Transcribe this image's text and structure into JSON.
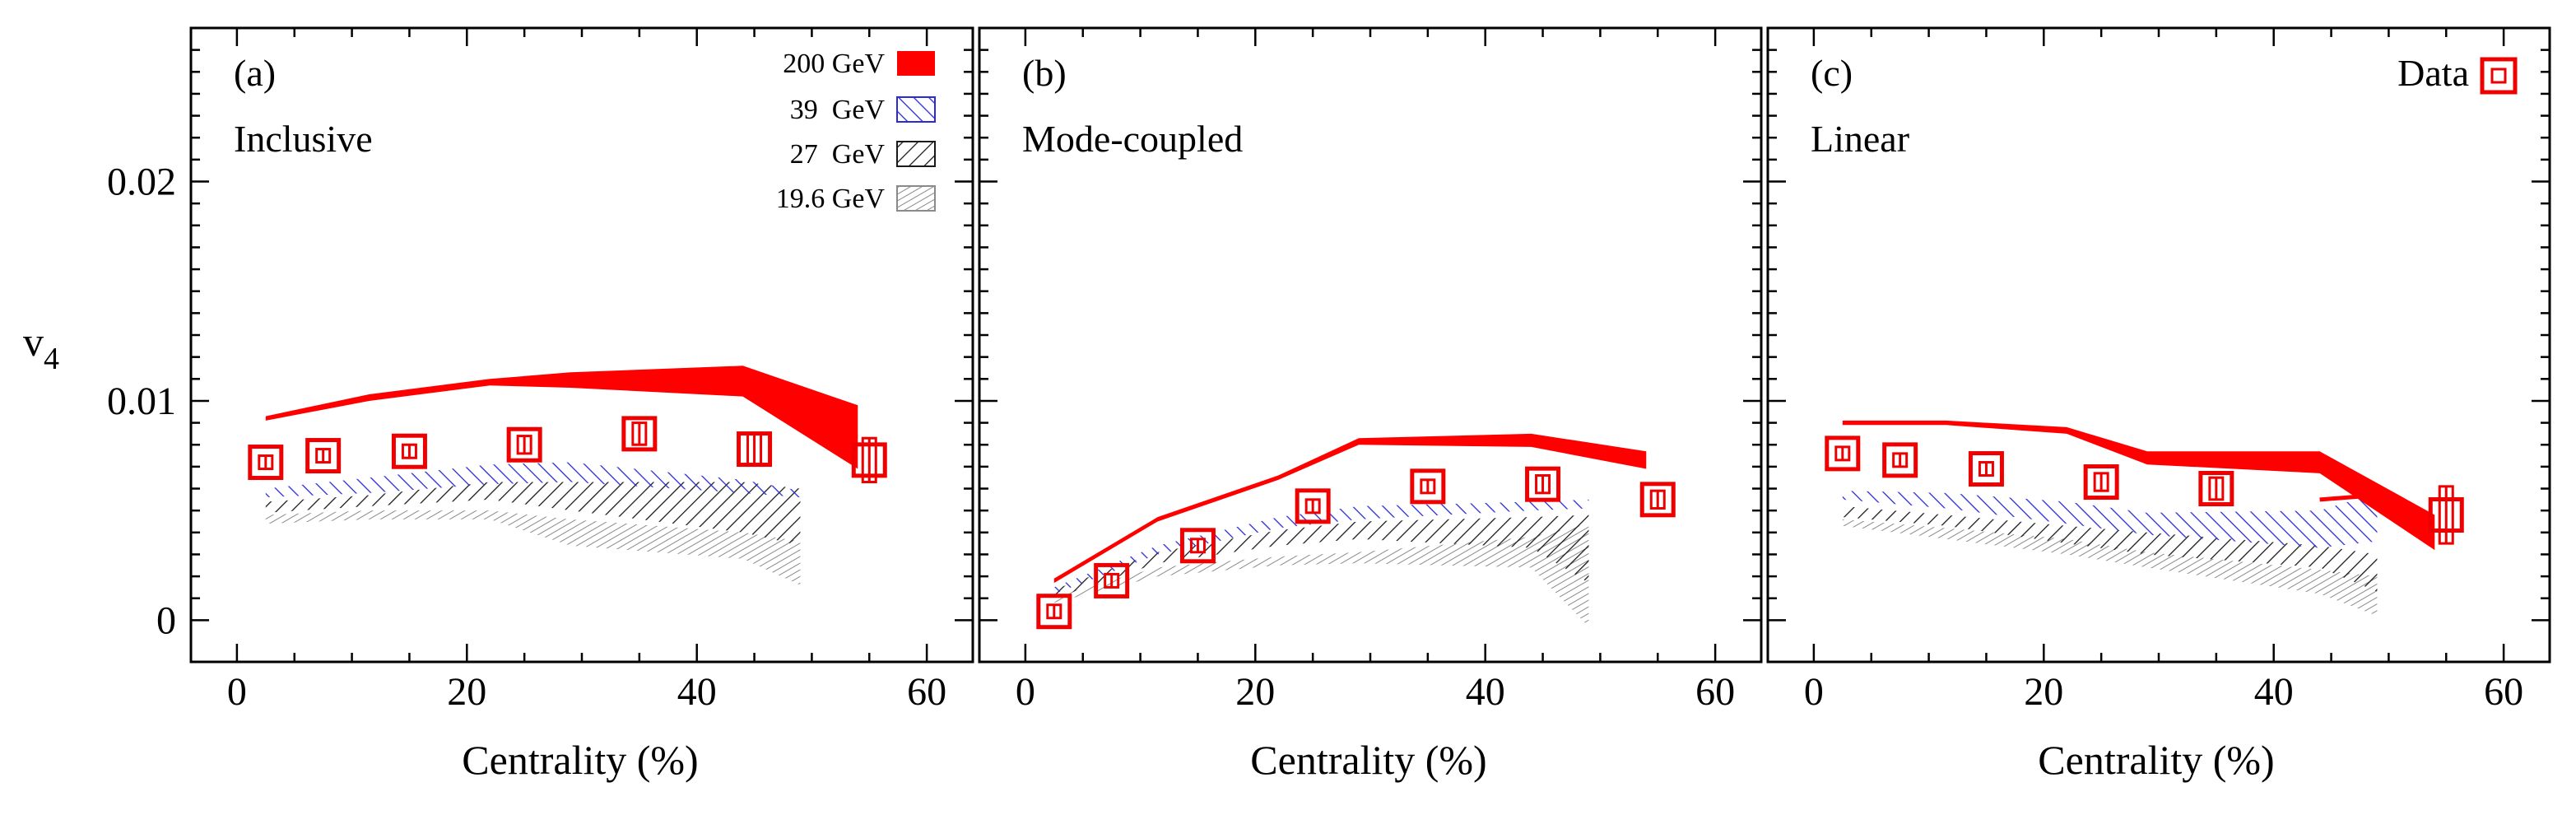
{
  "figure": {
    "y_axis_label": "v",
    "y_axis_subscript": "4",
    "x_axis_label": "Centrality (%)",
    "data_marker_label": "Data"
  },
  "colors": {
    "e200": "#ff0000",
    "e39": "#2a2ad8",
    "e27": "#1a1a1a",
    "e19": "#8a8a8a",
    "data": "#ee0000"
  },
  "legend": [
    {
      "label": "200 GeV",
      "key": "e200"
    },
    {
      "label": "39  GeV",
      "key": "e39"
    },
    {
      "label": "27  GeV",
      "key": "e27"
    },
    {
      "label": "19.6 GeV",
      "key": "e19"
    }
  ],
  "chart_data": [
    {
      "type": "area",
      "panel": "(a)",
      "title": "Inclusive",
      "xlabel": "Centrality (%)",
      "ylabel": "v4",
      "xlim": [
        -4,
        64
      ],
      "ylim": [
        -0.0019,
        0.027
      ],
      "xticks": [
        0,
        20,
        40,
        60
      ],
      "yticks": [
        0,
        0.01,
        0.02
      ],
      "ytick_labels": [
        "0",
        "0.01",
        "0.02"
      ],
      "bands": [
        {
          "name": "200 GeV",
          "key": "e200",
          "x": [
            2.5,
            11.5,
            22,
            29,
            44,
            54
          ],
          "lower": [
            0.0091,
            0.01,
            0.0107,
            0.0106,
            0.0102,
            0.0069
          ],
          "upper": [
            0.0093,
            0.0103,
            0.011,
            0.0113,
            0.0116,
            0.0098
          ]
        },
        {
          "name": "39 GeV",
          "key": "e39",
          "x": [
            2.5,
            11.5,
            22,
            29,
            44,
            49
          ],
          "lower": [
            0.0056,
            0.0058,
            0.0062,
            0.0063,
            0.0058,
            0.0056
          ],
          "upper": [
            0.006,
            0.0065,
            0.0071,
            0.0072,
            0.0064,
            0.0059
          ]
        },
        {
          "name": "27 GeV",
          "key": "e27",
          "x": [
            2.5,
            11.5,
            22,
            29,
            44,
            49
          ],
          "lower": [
            0.0049,
            0.0052,
            0.0055,
            0.005,
            0.004,
            0.0034
          ],
          "upper": [
            0.0054,
            0.0057,
            0.0063,
            0.0063,
            0.0063,
            0.006
          ]
        },
        {
          "name": "19.6 GeV",
          "key": "e19",
          "x": [
            2.5,
            11.5,
            22,
            29,
            44,
            49
          ],
          "lower": [
            0.0044,
            0.0046,
            0.0046,
            0.0034,
            0.0028,
            0.0016
          ],
          "upper": [
            0.0048,
            0.005,
            0.005,
            0.0046,
            0.004,
            0.0036
          ]
        }
      ],
      "data": {
        "x": [
          2.5,
          7.5,
          15,
          25,
          35,
          45,
          55
        ],
        "y": [
          0.0072,
          0.0075,
          0.0077,
          0.008,
          0.0085,
          0.0078,
          0.0073
        ],
        "err": [
          0.0003,
          0.0003,
          0.0003,
          0.0004,
          0.0005,
          0.0007,
          0.001
        ]
      }
    },
    {
      "type": "area",
      "panel": "(b)",
      "title": "Mode-coupled",
      "xlabel": "Centrality (%)",
      "ylabel": "v4",
      "xlim": [
        -4,
        64
      ],
      "ylim": [
        -0.0019,
        0.027
      ],
      "xticks": [
        0,
        20,
        40,
        60
      ],
      "yticks": [
        0,
        0.01,
        0.02
      ],
      "ytick_labels": [
        "0",
        "0.01",
        "0.02"
      ],
      "bands": [
        {
          "name": "200 GeV",
          "key": "e200",
          "x": [
            2.5,
            11.5,
            22,
            29,
            44,
            54
          ],
          "lower": [
            0.0017,
            0.0045,
            0.0064,
            0.008,
            0.0079,
            0.0069
          ],
          "upper": [
            0.0019,
            0.0047,
            0.0066,
            0.0083,
            0.0085,
            0.0077
          ]
        },
        {
          "name": "39 GeV",
          "key": "e39",
          "x": [
            2.5,
            11.5,
            22,
            29,
            44,
            49
          ],
          "lower": [
            0.0012,
            0.003,
            0.0042,
            0.0046,
            0.005,
            0.0051
          ],
          "upper": [
            0.0015,
            0.0034,
            0.0047,
            0.0052,
            0.0054,
            0.0055
          ]
        },
        {
          "name": "27 GeV",
          "key": "e27",
          "x": [
            2.5,
            11.5,
            22,
            29,
            44,
            49
          ],
          "lower": [
            0.001,
            0.0026,
            0.0034,
            0.0037,
            0.0033,
            0.0017
          ],
          "upper": [
            0.0014,
            0.0031,
            0.0041,
            0.0045,
            0.0047,
            0.0048
          ]
        },
        {
          "name": "19.6 GeV",
          "key": "e19",
          "x": [
            2.5,
            11.5,
            22,
            29,
            44,
            49
          ],
          "lower": [
            0.0008,
            0.002,
            0.0025,
            0.0026,
            0.0024,
            -0.0003
          ],
          "upper": [
            0.0011,
            0.0024,
            0.0029,
            0.0031,
            0.0038,
            0.0044
          ]
        }
      ],
      "data": {
        "x": [
          2.5,
          7.5,
          15,
          25,
          35,
          45,
          55
        ],
        "y": [
          0.0004,
          0.0018,
          0.0034,
          0.0052,
          0.0061,
          0.0062,
          0.0055
        ],
        "err": [
          0.0003,
          0.0003,
          0.0003,
          0.0003,
          0.0003,
          0.0004,
          0.0004
        ]
      }
    },
    {
      "type": "area",
      "panel": "(c)",
      "title": "Linear",
      "xlabel": "Centrality (%)",
      "ylabel": "v4",
      "xlim": [
        -4,
        64
      ],
      "ylim": [
        -0.0019,
        0.027
      ],
      "xticks": [
        0,
        20,
        40,
        60
      ],
      "yticks": [
        0,
        0.01,
        0.02
      ],
      "ytick_labels": [
        "0",
        "0.01",
        "0.02"
      ],
      "bands": [
        {
          "name": "200 GeV",
          "key": "e200",
          "x": [
            2.5,
            11.5,
            22,
            29,
            44,
            54
          ],
          "lower": [
            0.0089,
            0.0089,
            0.0085,
            0.0071,
            0.0067,
            0.0032
          ],
          "upper": [
            0.0091,
            0.0091,
            0.0088,
            0.0077,
            0.0077,
            0.0048
          ]
        },
        {
          "name": "39 GeV",
          "key": "e39",
          "x": [
            2.5,
            11.5,
            22,
            29,
            44,
            49
          ],
          "lower": [
            0.0055,
            0.0051,
            0.0044,
            0.0039,
            0.0033,
            0.0036
          ],
          "upper": [
            0.0059,
            0.0058,
            0.0054,
            0.0049,
            0.005,
            0.0058
          ]
        },
        {
          "name": "27 GeV",
          "key": "e27",
          "x": [
            2.5,
            11.5,
            22,
            29,
            44,
            49
          ],
          "lower": [
            0.0047,
            0.0043,
            0.0035,
            0.003,
            0.0024,
            0.0013
          ],
          "upper": [
            0.0052,
            0.0048,
            0.0043,
            0.004,
            0.0034,
            0.003
          ]
        },
        {
          "name": "19.6 GeV",
          "key": "e19",
          "x": [
            2.5,
            11.5,
            22,
            29,
            44,
            49
          ],
          "lower": [
            0.0043,
            0.0037,
            0.003,
            0.0024,
            0.0012,
            0.0002
          ],
          "upper": [
            0.0046,
            0.0042,
            0.0037,
            0.0031,
            0.0023,
            0.002
          ]
        }
      ],
      "extra_segment": {
        "key": "e200",
        "x": [
          44,
          49
        ],
        "y": [
          0.0055,
          0.0057
        ]
      },
      "data": {
        "x": [
          2.5,
          7.5,
          15,
          25,
          35,
          55
        ],
        "y": [
          0.0076,
          0.0073,
          0.0069,
          0.0063,
          0.006,
          0.0048
        ],
        "err": [
          0.0003,
          0.0003,
          0.0003,
          0.0004,
          0.0005,
          0.0013
        ]
      }
    }
  ]
}
